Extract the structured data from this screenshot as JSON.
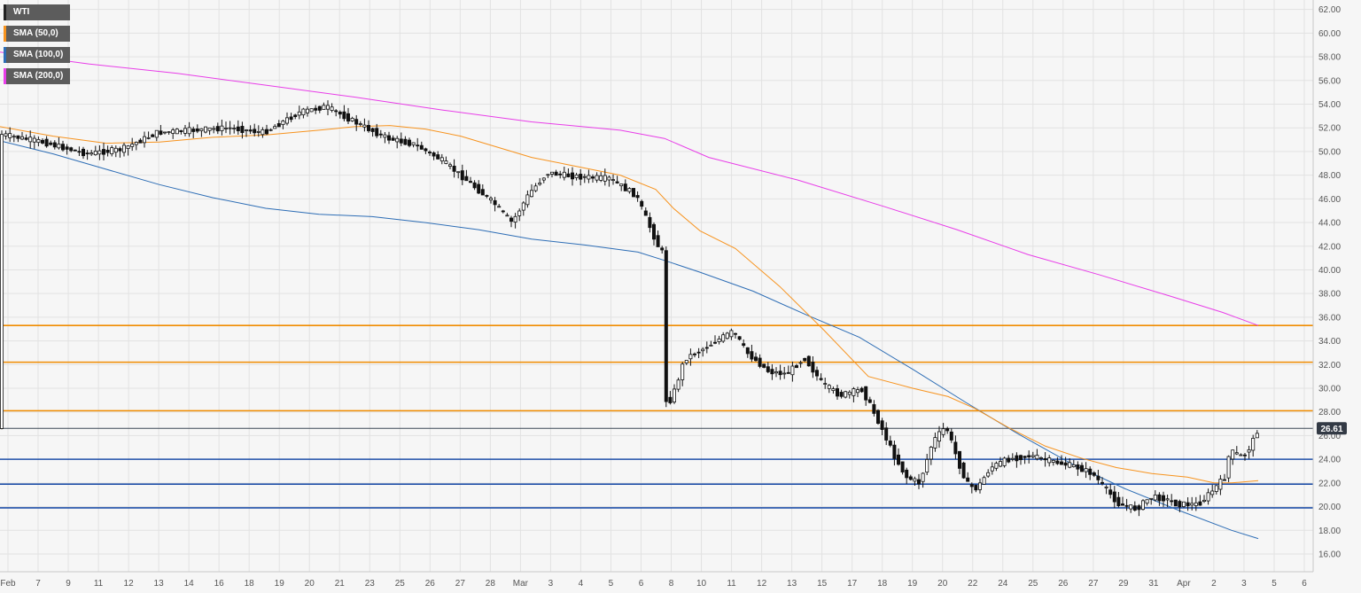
{
  "colors": {
    "background": "#f6f6f6",
    "grid": "#e2e2e2",
    "axis": "#c8c8c8",
    "sma50": "#f7931e",
    "sma100": "#2d6db5",
    "sma200": "#e83de8",
    "resistance": "#f08c00",
    "support": "#1f4fa8",
    "candle_up": "#ffffff",
    "candle_down": "#111111",
    "price_tag": "#333a45",
    "last_price_line": "#3a4654"
  },
  "legend": [
    {
      "label": "WTI",
      "color": "#222222"
    },
    {
      "label": "SMA (50,0)",
      "color": "#f7931e"
    },
    {
      "label": "SMA (100,0)",
      "color": "#2d6db5"
    },
    {
      "label": "SMA (200,0)",
      "color": "#e83de8"
    }
  ],
  "price_tag": {
    "label": "26.61"
  },
  "chart_data": {
    "type": "candlestick",
    "title": "",
    "xlabel": "",
    "ylabel": "",
    "ylim": [
      14.5,
      62.8
    ],
    "grid": true,
    "legend_position": "top-left",
    "y_ticks": [
      "16.00",
      "18.00",
      "20.00",
      "22.00",
      "24.00",
      "26.00",
      "28.00",
      "30.00",
      "32.00",
      "34.00",
      "36.00",
      "38.00",
      "40.00",
      "42.00",
      "44.00",
      "46.00",
      "48.00",
      "50.00",
      "52.00",
      "54.00",
      "56.00",
      "58.00",
      "60.00",
      "62.00"
    ],
    "x_ticks": [
      "Feb",
      "7",
      "9",
      "11",
      "12",
      "13",
      "14",
      "16",
      "18",
      "19",
      "20",
      "21",
      "23",
      "25",
      "26",
      "27",
      "28",
      "Mar",
      "3",
      "4",
      "5",
      "6",
      "8",
      "10",
      "11",
      "12",
      "13",
      "15",
      "17",
      "18",
      "19",
      "20",
      "22",
      "24",
      "25",
      "26",
      "27",
      "29",
      "31",
      "Apr",
      "2",
      "3",
      "5",
      "6"
    ],
    "last_price": 26.61,
    "horizontal_levels": {
      "resistance": [
        35.3,
        32.2,
        28.1
      ],
      "support": [
        24.0,
        21.9,
        19.9
      ]
    },
    "price_path": [
      [
        0,
        51.5
      ],
      [
        50,
        50.8
      ],
      [
        100,
        49.8
      ],
      [
        140,
        50.2
      ],
      [
        180,
        51.6
      ],
      [
        220,
        51.8
      ],
      [
        260,
        52.0
      ],
      [
        300,
        51.6
      ],
      [
        340,
        53.3
      ],
      [
        370,
        53.8
      ],
      [
        410,
        52.2
      ],
      [
        440,
        51.1
      ],
      [
        470,
        50.6
      ],
      [
        500,
        49.3
      ],
      [
        530,
        47.5
      ],
      [
        560,
        45.6
      ],
      [
        580,
        44.0
      ],
      [
        600,
        46.5
      ],
      [
        620,
        48.2
      ],
      [
        650,
        47.9
      ],
      [
        690,
        47.7
      ],
      [
        720,
        46.3
      ],
      [
        748,
        41.5
      ],
      [
        760,
        29.0
      ],
      [
        775,
        32.5
      ],
      [
        795,
        33.3
      ],
      [
        815,
        34.2
      ],
      [
        830,
        34.8
      ],
      [
        845,
        33.0
      ],
      [
        870,
        31.4
      ],
      [
        890,
        31.2
      ],
      [
        910,
        32.6
      ],
      [
        930,
        30.4
      ],
      [
        950,
        29.4
      ],
      [
        975,
        29.9
      ],
      [
        995,
        27.0
      ],
      [
        1010,
        24.5
      ],
      [
        1025,
        22.5
      ],
      [
        1040,
        22.0
      ],
      [
        1055,
        25.5
      ],
      [
        1070,
        26.8
      ],
      [
        1085,
        23.5
      ],
      [
        1095,
        21.8
      ],
      [
        1105,
        21.5
      ],
      [
        1120,
        23.3
      ],
      [
        1140,
        24.0
      ],
      [
        1165,
        24.3
      ],
      [
        1190,
        23.8
      ],
      [
        1215,
        23.4
      ],
      [
        1235,
        22.8
      ],
      [
        1250,
        21.5
      ],
      [
        1265,
        20.2
      ],
      [
        1285,
        19.8
      ],
      [
        1300,
        20.8
      ],
      [
        1315,
        20.7
      ],
      [
        1330,
        20.2
      ],
      [
        1355,
        20.2
      ],
      [
        1370,
        21.3
      ],
      [
        1385,
        22.5
      ],
      [
        1390,
        24.7
      ],
      [
        1405,
        24.2
      ],
      [
        1415,
        25.3
      ],
      [
        1422,
        26.6
      ]
    ],
    "gaps_after_x": [
      748
    ],
    "sma50_path": [
      [
        0,
        52.1
      ],
      [
        60,
        51.3
      ],
      [
        120,
        50.7
      ],
      [
        180,
        50.8
      ],
      [
        240,
        51.2
      ],
      [
        300,
        51.4
      ],
      [
        360,
        51.8
      ],
      [
        400,
        52.1
      ],
      [
        440,
        52.2
      ],
      [
        480,
        51.9
      ],
      [
        520,
        51.3
      ],
      [
        560,
        50.4
      ],
      [
        600,
        49.5
      ],
      [
        640,
        48.9
      ],
      [
        700,
        48.0
      ],
      [
        740,
        46.8
      ],
      [
        760,
        45.2
      ],
      [
        790,
        43.3
      ],
      [
        830,
        41.8
      ],
      [
        880,
        38.6
      ],
      [
        930,
        34.9
      ],
      [
        980,
        31.0
      ],
      [
        1030,
        30.0
      ],
      [
        1070,
        29.3
      ],
      [
        1100,
        28.3
      ],
      [
        1140,
        26.6
      ],
      [
        1180,
        25.1
      ],
      [
        1220,
        24.1
      ],
      [
        1260,
        23.3
      ],
      [
        1300,
        22.8
      ],
      [
        1340,
        22.5
      ],
      [
        1370,
        22.0
      ],
      [
        1390,
        22.0
      ],
      [
        1420,
        22.2
      ]
    ],
    "sma100_path": [
      [
        0,
        50.9
      ],
      [
        60,
        49.8
      ],
      [
        120,
        48.5
      ],
      [
        180,
        47.2
      ],
      [
        240,
        46.1
      ],
      [
        300,
        45.2
      ],
      [
        360,
        44.7
      ],
      [
        420,
        44.5
      ],
      [
        480,
        44.0
      ],
      [
        540,
        43.4
      ],
      [
        600,
        42.6
      ],
      [
        660,
        42.1
      ],
      [
        720,
        41.5
      ],
      [
        750,
        40.8
      ],
      [
        790,
        39.8
      ],
      [
        850,
        38.2
      ],
      [
        910,
        36.2
      ],
      [
        970,
        34.3
      ],
      [
        1030,
        31.6
      ],
      [
        1090,
        28.8
      ],
      [
        1150,
        26.1
      ],
      [
        1210,
        23.6
      ],
      [
        1270,
        21.5
      ],
      [
        1330,
        19.7
      ],
      [
        1390,
        18.0
      ],
      [
        1420,
        17.3
      ]
    ],
    "sma200_path": [
      [
        0,
        58.4
      ],
      [
        100,
        57.4
      ],
      [
        200,
        56.6
      ],
      [
        300,
        55.6
      ],
      [
        400,
        54.6
      ],
      [
        500,
        53.5
      ],
      [
        600,
        52.5
      ],
      [
        700,
        51.8
      ],
      [
        750,
        51.1
      ],
      [
        800,
        49.5
      ],
      [
        900,
        47.6
      ],
      [
        1000,
        45.3
      ],
      [
        1080,
        43.4
      ],
      [
        1160,
        41.3
      ],
      [
        1240,
        39.6
      ],
      [
        1320,
        37.8
      ],
      [
        1380,
        36.4
      ],
      [
        1420,
        35.3
      ]
    ]
  }
}
